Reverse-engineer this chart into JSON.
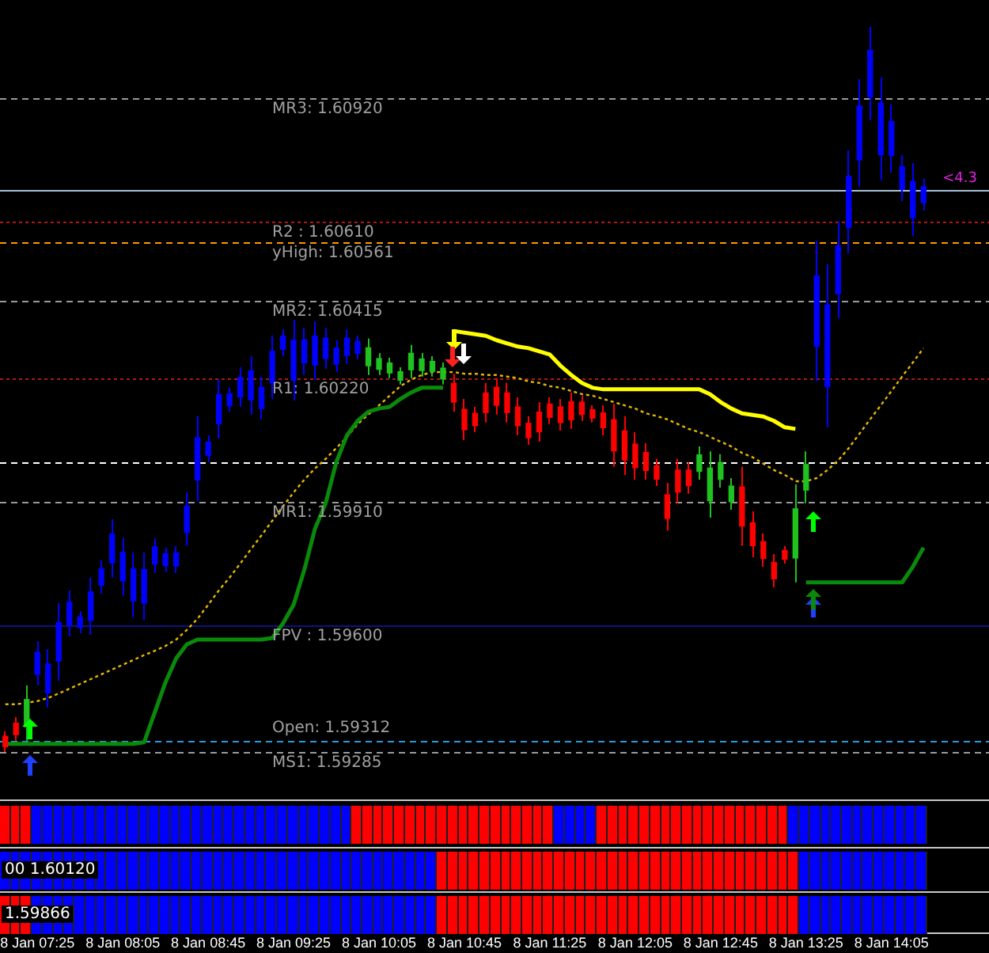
{
  "chart_data": {
    "type": "candlestick",
    "categories": [
      null,
      null,
      null,
      "8 Jan 07:25",
      null,
      null,
      null,
      null,
      null,
      null,
      null,
      "8 Jan 08:05",
      null,
      null,
      null,
      null,
      null,
      null,
      null,
      "8 Jan 08:45",
      null,
      null,
      null,
      null,
      null,
      null,
      null,
      "8 Jan 09:25",
      null,
      null,
      null,
      null,
      null,
      null,
      null,
      "8 Jan 10:05",
      null,
      null,
      null,
      null,
      null,
      null,
      null,
      "8 Jan 10:45",
      null,
      null,
      null,
      null,
      null,
      null,
      null,
      "8 Jan 11:25",
      null,
      null,
      null,
      null,
      null,
      null,
      null,
      "8 Jan 12:05",
      null,
      null,
      null,
      null,
      null,
      null,
      null,
      "8 Jan 12:45",
      null,
      null,
      null,
      null,
      null,
      null,
      null,
      "8 Jan 13:25",
      null,
      null,
      null,
      null,
      null,
      null,
      null,
      "8 Jan 14:05",
      null,
      null,
      null
    ],
    "ohlc": [
      [
        1.59324,
        1.59337,
        1.59285,
        1.59298
      ],
      [
        1.59357,
        1.59372,
        1.59313,
        1.59328
      ],
      [
        1.59348,
        1.59451,
        1.59313,
        1.59416
      ],
      [
        1.59479,
        1.59562,
        1.59451,
        1.59534
      ],
      [
        1.59433,
        1.59542,
        1.59396,
        1.59505
      ],
      [
        1.59512,
        1.59657,
        1.59463,
        1.59608
      ],
      [
        1.59603,
        1.59689,
        1.59574,
        1.5966
      ],
      [
        1.59596,
        1.59637,
        1.59582,
        1.59623
      ],
      [
        1.59614,
        1.59721,
        1.59578,
        1.59685
      ],
      [
        1.59702,
        1.59764,
        1.59681,
        1.59743
      ],
      [
        1.59758,
        1.59867,
        1.59721,
        1.5983
      ],
      [
        1.59713,
        1.5982,
        1.59677,
        1.59784
      ],
      [
        1.59663,
        1.59784,
        1.59622,
        1.59743
      ],
      [
        1.59657,
        1.59784,
        1.59614,
        1.59741
      ],
      [
        1.59755,
        1.5982,
        1.59733,
        1.59798
      ],
      [
        1.59751,
        1.59796,
        1.59736,
        1.59781
      ],
      [
        1.5975,
        1.598,
        1.59733,
        1.59783
      ],
      [
        1.59834,
        1.59934,
        1.598,
        1.599
      ],
      [
        1.59965,
        1.60125,
        1.59911,
        1.60071
      ],
      [
        1.60027,
        1.60077,
        1.6001,
        1.6006
      ],
      [
        1.60106,
        1.60216,
        1.60069,
        1.60179
      ],
      [
        1.60151,
        1.60196,
        1.60136,
        1.60181
      ],
      [
        1.60173,
        1.60247,
        1.60148,
        1.60222
      ],
      [
        1.60166,
        1.60275,
        1.60129,
        1.60238
      ],
      [
        1.60144,
        1.60224,
        1.60117,
        1.60197
      ],
      [
        1.60208,
        1.60327,
        1.60168,
        1.60287
      ],
      [
        1.60292,
        1.60342,
        1.60275,
        1.60325
      ],
      [
        1.60215,
        1.60366,
        1.60164,
        1.60315
      ],
      [
        1.60258,
        1.60346,
        1.60228,
        1.60316
      ],
      [
        1.60253,
        1.60362,
        1.60216,
        1.60325
      ],
      [
        1.60269,
        1.60346,
        1.60243,
        1.6032
      ],
      [
        1.60255,
        1.60315,
        1.60235,
        1.60295
      ],
      [
        1.60277,
        1.60342,
        1.60255,
        1.6032
      ],
      [
        1.60282,
        1.60327,
        1.60267,
        1.60312
      ],
      [
        1.60251,
        1.60319,
        1.60228,
        1.60296
      ],
      [
        1.60242,
        1.60283,
        1.60228,
        1.60269
      ],
      [
        1.60233,
        1.60271,
        1.6022,
        1.60258
      ],
      [
        1.60215,
        1.60247,
        1.60204,
        1.60236
      ],
      [
        1.60241,
        1.60303,
        1.6022,
        1.60282
      ],
      [
        1.60239,
        1.60283,
        1.60224,
        1.60268
      ],
      [
        1.60237,
        1.60275,
        1.60224,
        1.60262
      ],
      [
        1.60218,
        1.60259,
        1.60204,
        1.60245
      ],
      [
        1.60207,
        1.60231,
        1.60136,
        1.6016
      ],
      [
        1.60142,
        1.60168,
        1.60065,
        1.60091
      ],
      [
        1.60132,
        1.60148,
        1.60085,
        1.60101
      ],
      [
        1.60183,
        1.60208,
        1.60109,
        1.60134
      ],
      [
        1.60197,
        1.6022,
        1.60129,
        1.60152
      ],
      [
        1.60183,
        1.60208,
        1.60109,
        1.60134
      ],
      [
        1.60148,
        1.60172,
        1.60077,
        1.60101
      ],
      [
        1.60107,
        1.60125,
        1.60053,
        1.60071
      ],
      [
        1.60135,
        1.6016,
        1.60061,
        1.60086
      ],
      [
        1.60155,
        1.60172,
        1.60105,
        1.60122
      ],
      [
        1.60148,
        1.60168,
        1.60089,
        1.60109
      ],
      [
        1.60161,
        1.60184,
        1.60093,
        1.60116
      ],
      [
        1.6016,
        1.60176,
        1.60113,
        1.60129
      ],
      [
        1.60141,
        1.60152,
        1.60109,
        1.6012
      ],
      [
        1.60133,
        1.60152,
        1.60077,
        1.60096
      ],
      [
        1.60116,
        1.60156,
        1.59998,
        1.60038
      ],
      [
        1.60088,
        1.60125,
        1.59978,
        1.60015
      ],
      [
        1.60055,
        1.60085,
        1.59966,
        1.59996
      ],
      [
        1.60034,
        1.60057,
        1.59966,
        1.59989
      ],
      [
        1.60001,
        1.60018,
        1.5995,
        1.59967
      ],
      [
        1.59928,
        1.59958,
        1.59839,
        1.59869
      ],
      [
        1.5999,
        1.60018,
        1.59907,
        1.59935
      ],
      [
        1.5999,
        1.6001,
        1.59931,
        1.59951
      ],
      [
        1.59987,
        1.60049,
        1.59966,
        1.60028
      ],
      [
        1.59913,
        1.60037,
        1.59871,
        1.59995
      ],
      [
        1.59967,
        1.6003,
        1.59946,
        1.60009
      ],
      [
        1.59911,
        1.5997,
        1.59891,
        1.5995
      ],
      [
        1.59948,
        1.59998,
        1.598,
        1.5985
      ],
      [
        1.59858,
        1.59887,
        1.59772,
        1.59801
      ],
      [
        1.59811,
        1.59832,
        1.59748,
        1.59769
      ],
      [
        1.59759,
        1.5978,
        1.59697,
        1.59718
      ],
      [
        1.59789,
        1.598,
        1.59756,
        1.59767
      ],
      [
        1.5977,
        1.59954,
        1.59709,
        1.59893
      ],
      [
        1.5994,
        1.60037,
        1.59907,
        1.60004
      ],
      [
        1.603,
        1.60564,
        1.60212,
        1.60476
      ],
      [
        1.60199,
        1.60505,
        1.60097,
        1.60403
      ],
      [
        1.60431,
        1.60612,
        1.6037,
        1.60551
      ],
      [
        1.60597,
        1.6079,
        1.60532,
        1.60725
      ],
      [
        1.60766,
        1.60968,
        1.60699,
        1.60901
      ],
      [
        1.60924,
        1.61099,
        1.60865,
        1.6104
      ],
      [
        1.60779,
        1.60972,
        1.60715,
        1.60908
      ],
      [
        1.60777,
        1.60905,
        1.60734,
        1.60862
      ],
      [
        1.60692,
        1.60778,
        1.60663,
        1.60749
      ],
      [
        1.60622,
        1.60758,
        1.60576,
        1.60712
      ],
      [
        1.60659,
        1.60719,
        1.60639,
        1.60699
      ]
    ],
    "colors": [
      "#ff0000",
      "#ff0000",
      "#1fc21f",
      "#0000ff",
      "#0000ff",
      "#0000ff",
      "#0000ff",
      "#0000ff",
      "#0000ff",
      "#0000ff",
      "#0000ff",
      "#0000ff",
      "#0000ff",
      "#0000ff",
      "#0000ff",
      "#0000ff",
      "#0000ff",
      "#0000ff",
      "#0000ff",
      "#0000ff",
      "#0000ff",
      "#0000ff",
      "#0000ff",
      "#0000ff",
      "#0000ff",
      "#0000ff",
      "#0000ff",
      "#0000ff",
      "#0000ff",
      "#0000ff",
      "#0000ff",
      "#0000ff",
      "#0000ff",
      "#0000ff",
      "#1fc21f",
      "#1fc21f",
      "#1fc21f",
      "#1fc21f",
      "#1fc21f",
      "#1fc21f",
      "#1fc21f",
      "#1fc21f",
      "#ff0000",
      "#ff0000",
      "#ff0000",
      "#ff0000",
      "#ff0000",
      "#ff0000",
      "#ff0000",
      "#ff0000",
      "#ff0000",
      "#ff0000",
      "#ff0000",
      "#ff0000",
      "#ff0000",
      "#ff0000",
      "#ff0000",
      "#ff0000",
      "#ff0000",
      "#ff0000",
      "#ff0000",
      "#ff0000",
      "#ff0000",
      "#ff0000",
      "#ff0000",
      "#1fc21f",
      "#1fc21f",
      "#1fc21f",
      "#1fc21f",
      "#ff0000",
      "#ff0000",
      "#ff0000",
      "#ff0000",
      "#ff0000",
      "#1fc21f",
      "#1fc21f",
      "#0000ff",
      "#0000ff",
      "#0000ff",
      "#0000ff",
      "#0000ff",
      "#0000ff",
      "#0000ff",
      "#0000ff",
      "#0000ff",
      "#0000ff",
      "#0000ff"
    ],
    "series": [
      {
        "type": "line",
        "color": "#0a8a0a",
        "line_style": "solid",
        "values": [
          1.59305,
          1.59305,
          1.59305,
          1.59305,
          1.59305,
          1.59305,
          1.59305,
          1.59305,
          1.59305,
          1.59305,
          1.59305,
          1.59305,
          1.59305,
          1.59309,
          1.59384,
          1.59459,
          1.59519,
          1.59554,
          1.59566,
          1.59566,
          1.59566,
          1.59566,
          1.59566,
          1.59566,
          1.59566,
          1.5957,
          1.59606,
          1.59653,
          1.5974,
          1.59843,
          1.59907,
          1.6001,
          1.60077,
          1.60113,
          1.60136,
          1.60144,
          1.60148,
          1.60168,
          1.60184,
          1.60196,
          1.60196,
          1.60196,
          null,
          null,
          null,
          null,
          null,
          null,
          null,
          null,
          null,
          null,
          null,
          null,
          null,
          null,
          null,
          null,
          null,
          null,
          null,
          null,
          null,
          null,
          null,
          null,
          null,
          null,
          null,
          null,
          null,
          null,
          null,
          null,
          null,
          1.59709,
          1.59709,
          1.59709,
          1.59709,
          1.59709,
          1.59709,
          1.59709,
          1.59709,
          1.59709,
          1.59709,
          1.59748,
          1.59796
        ]
      },
      {
        "type": "line",
        "color": "#ffff00",
        "line_style": "solid",
        "values": [
          null,
          null,
          null,
          null,
          null,
          null,
          null,
          null,
          null,
          null,
          null,
          null,
          null,
          null,
          null,
          null,
          null,
          null,
          null,
          null,
          null,
          null,
          null,
          null,
          null,
          null,
          null,
          null,
          null,
          null,
          null,
          null,
          null,
          null,
          null,
          null,
          null,
          null,
          null,
          null,
          null,
          null,
          1.60338,
          1.60334,
          1.6033,
          1.60326,
          1.60315,
          1.60307,
          1.60299,
          1.60295,
          1.60287,
          1.60279,
          1.60251,
          1.60228,
          1.60208,
          1.60196,
          1.60192,
          1.60192,
          1.60192,
          1.60192,
          1.60192,
          1.60192,
          1.60192,
          1.60192,
          1.60192,
          1.60192,
          1.6018,
          1.6016,
          1.60144,
          1.60132,
          1.60128,
          1.60124,
          1.60113,
          1.60097,
          1.60093,
          null,
          null,
          null,
          null,
          null,
          null,
          null,
          null,
          null,
          null,
          null,
          null
        ]
      },
      {
        "type": "line",
        "color": "#e6b800",
        "line_style": "dotted",
        "values": [
          1.59404,
          1.59404,
          1.59408,
          1.59412,
          1.5942,
          1.59431,
          1.59443,
          1.59455,
          1.59467,
          1.59479,
          1.59491,
          1.59503,
          1.59515,
          1.59527,
          1.59538,
          1.5955,
          1.59566,
          1.5959,
          1.59618,
          1.59653,
          1.59689,
          1.59721,
          1.59756,
          1.59792,
          1.59827,
          1.59863,
          1.59899,
          1.59934,
          1.59966,
          1.59994,
          1.60018,
          1.60045,
          1.60073,
          1.60105,
          1.60129,
          1.60152,
          1.60176,
          1.602,
          1.60216,
          1.60228,
          1.60235,
          1.60235,
          1.60235,
          1.60231,
          1.60231,
          1.60228,
          1.60228,
          1.60224,
          1.6022,
          1.60212,
          1.60208,
          1.602,
          1.60196,
          1.60188,
          1.6018,
          1.60176,
          1.60168,
          1.6016,
          1.60152,
          1.60144,
          1.60132,
          1.60125,
          1.60117,
          1.60105,
          1.60093,
          1.60085,
          1.60073,
          1.60061,
          1.60049,
          1.60033,
          1.60022,
          1.60006,
          1.5999,
          1.59978,
          1.59962,
          1.59962,
          1.5997,
          1.5999,
          1.60014,
          1.60045,
          1.60081,
          1.60117,
          1.60152,
          1.60188,
          1.60224,
          1.60259,
          1.60295
        ]
      }
    ],
    "ref_lines": [
      {
        "axis": "y",
        "value": 1.6092,
        "label": "MR3: 1.60920",
        "color": "#9a9a9a",
        "line_style": "dashed"
      },
      {
        "axis": "y",
        "value": 1.60691,
        "color": "#a8c0d8",
        "line_style": "solid"
      },
      {
        "axis": "y",
        "value": 1.6061,
        "label": "R2 : 1.60610",
        "color": "#b01818",
        "line_style": "dotted"
      },
      {
        "axis": "y",
        "value": 1.60561,
        "label": "yHigh: 1.60561",
        "color": "#ff9900",
        "line_style": "dashed"
      },
      {
        "axis": "y",
        "value": 1.60415,
        "label": "MR2: 1.60415",
        "color": "#9a9a9a",
        "line_style": "dashed"
      },
      {
        "axis": "y",
        "value": 1.6022,
        "label": "R1: 1.60220",
        "color": "#b01818",
        "line_style": "dotted"
      },
      {
        "axis": "y",
        "value": 1.6001,
        "color": "#ffffff",
        "line_style": "dashed"
      },
      {
        "axis": "y",
        "value": 1.5991,
        "label": "MR1: 1.59910",
        "color": "#9a9a9a",
        "line_style": "dashed"
      },
      {
        "axis": "y",
        "value": 1.596,
        "label": "FPV : 1.59600",
        "color": "#101080",
        "line_style": "solid"
      },
      {
        "axis": "y",
        "value": 1.59312,
        "label": "Open: 1.59312",
        "color": "#2a9ae0",
        "line_style": "dashed"
      },
      {
        "axis": "y",
        "value": 1.59285,
        "label": "MS1: 1.59285",
        "color": "#9a9a9a",
        "line_style": "dashed"
      }
    ],
    "annotations": [
      "<4.3",
      "00 1.60120",
      "1.59866"
    ],
    "ylim": [
      1.59166,
      1.61166
    ],
    "tick_labels": "x",
    "grid": false,
    "legend": false,
    "marker": "none"
  }
}
